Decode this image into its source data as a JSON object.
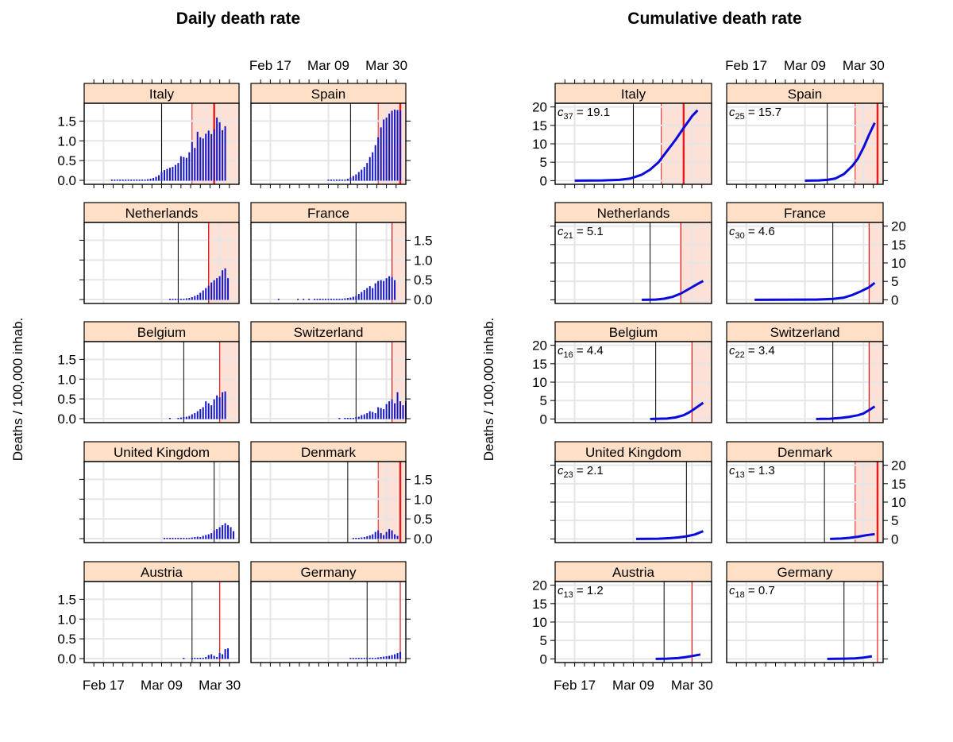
{
  "colors": {
    "strip_bg": "#ffe0c6",
    "shade": "#fde0d6",
    "grid": "#e6e6e6",
    "bar": "#1515c8",
    "curve": "#0a0adc",
    "redline": "#e51a1a",
    "event": "#000000"
  },
  "chart_data": [
    {
      "type": "bar",
      "title": "Daily death rate",
      "ylabel": "Deaths / 100,000 inhab.",
      "xlabel": "",
      "x_tick_labels": [
        "Feb 17",
        "Mar 09",
        "Mar 30"
      ],
      "x_tick_days": [
        0,
        21,
        42
      ],
      "xlim": [
        -7,
        49
      ],
      "ylim": [
        -0.1,
        1.95
      ],
      "y_ticks": [
        0.0,
        0.5,
        1.0,
        1.5
      ],
      "y_tick_labels": [
        "0.0",
        "0.5",
        "1.0",
        "1.5"
      ],
      "x_unit": "days since Feb 17",
      "series": [
        {
          "name": "Italy",
          "start_day": 3,
          "event_day": 21,
          "shade_start": 32,
          "shade_end": 49,
          "red_line": 40,
          "red_strong": true,
          "values": [
            0.002,
            0.002,
            0.003,
            0.004,
            0.005,
            0.006,
            0.008,
            0.01,
            0.012,
            0.015,
            0.02,
            0.025,
            0.03,
            0.04,
            0.05,
            0.07,
            0.1,
            0.14,
            0.22,
            0.27,
            0.3,
            0.33,
            0.35,
            0.4,
            0.45,
            0.62,
            0.6,
            0.58,
            0.72,
            0.98,
            0.83,
            1.24,
            1.1,
            1.07,
            1.19,
            1.27,
            1.18,
            1.3,
            1.6,
            1.48,
            1.28,
            1.38
          ]
        },
        {
          "name": "Spain",
          "start_day": 21,
          "event_day": 29,
          "shade_start": 39,
          "shade_end": 49,
          "red_line": 47,
          "red_strong": true,
          "values": [
            0.002,
            0.003,
            0.005,
            0.008,
            0.01,
            0.02,
            0.03,
            0.05,
            0.08,
            0.12,
            0.16,
            0.22,
            0.28,
            0.35,
            0.45,
            0.6,
            0.72,
            0.9,
            1.1,
            1.35,
            1.55,
            1.6,
            1.7,
            1.77,
            1.8,
            1.79,
            1.78
          ]
        },
        {
          "name": "Netherlands",
          "start_day": 24,
          "event_day": 27,
          "shade_start": 38,
          "shade_end": 49,
          "red_line": 38,
          "red_strong": false,
          "values": [
            0.005,
            0.005,
            0.004,
            0.01,
            0.02,
            0.03,
            0.04,
            0.05,
            0.07,
            0.1,
            0.13,
            0.18,
            0.24,
            0.3,
            0.36,
            0.44,
            0.5,
            0.55,
            0.6,
            0.75,
            0.8,
            0.55
          ]
        },
        {
          "name": "France",
          "start_day": 3,
          "event_day": 31,
          "shade_start": 44,
          "shade_end": 49,
          "red_line": 44,
          "red_strong": false,
          "values": [
            0.002,
            0,
            0,
            0,
            0,
            0,
            0,
            0.002,
            0,
            0.002,
            0,
            0.002,
            0,
            0.003,
            0.004,
            0.005,
            0.006,
            0.007,
            0.01,
            0.012,
            0.015,
            0.02,
            0.025,
            0.03,
            0.04,
            0.05,
            0.06,
            0.08,
            0.1,
            0.15,
            0.2,
            0.25,
            0.3,
            0.35,
            0.3,
            0.42,
            0.48,
            0.5,
            0.48,
            0.55,
            0.6,
            0.58,
            0.5
          ]
        },
        {
          "name": "Belgium",
          "start_day": 24,
          "event_day": 29,
          "shade_start": 42,
          "shade_end": 49,
          "red_line": 42,
          "red_strong": false,
          "values": [
            0.02,
            0,
            0,
            0.03,
            0.04,
            0.05,
            0.06,
            0.08,
            0.12,
            0.15,
            0.2,
            0.25,
            0.3,
            0.45,
            0.4,
            0.35,
            0.5,
            0.6,
            0.55,
            0.68,
            0.7
          ]
        },
        {
          "name": "Switzerland",
          "start_day": 25,
          "event_day": 31,
          "shade_start": 44,
          "shade_end": 49,
          "red_line": 44,
          "red_strong": false,
          "values": [
            0.01,
            0,
            0.02,
            0.01,
            0.02,
            0.03,
            0.05,
            0.06,
            0.1,
            0.12,
            0.15,
            0.2,
            0.18,
            0.15,
            0.3,
            0.28,
            0.25,
            0.38,
            0.45,
            0.5,
            0.4,
            0.68,
            0.45,
            0.35,
            0.45
          ]
        },
        {
          "name": "United Kingdom",
          "start_day": 22,
          "event_day": 40,
          "shade_start": null,
          "shade_end": null,
          "red_line": null,
          "red_strong": false,
          "values": [
            0.005,
            0.005,
            0.005,
            0.008,
            0.01,
            0.012,
            0.015,
            0.02,
            0.02,
            0.03,
            0.04,
            0.05,
            0.06,
            0.05,
            0.08,
            0.1,
            0.12,
            0.15,
            0.22,
            0.25,
            0.3,
            0.35,
            0.4,
            0.35,
            0.3,
            0.2
          ]
        },
        {
          "name": "Denmark",
          "start_day": 30,
          "event_day": 28,
          "shade_start": 39,
          "shade_end": 49,
          "red_line": 47,
          "red_strong": true,
          "values": [
            0.02,
            0.02,
            0.03,
            0.04,
            0.05,
            0.07,
            0.09,
            0.12,
            0.18,
            0.22,
            0.15,
            0.1,
            0.18,
            0.25,
            0.22,
            0.12,
            0.08
          ]
        },
        {
          "name": "Austria",
          "start_day": 29,
          "event_day": 32,
          "shade_start": null,
          "shade_end": null,
          "red_line": 42,
          "red_strong": false,
          "values": [
            0.01,
            0,
            0,
            0.01,
            0.01,
            0.02,
            0.03,
            0.02,
            0.05,
            0.1,
            0.12,
            0.08,
            0.05,
            0.15,
            0.12,
            0.25,
            0.27
          ]
        },
        {
          "name": "Germany",
          "start_day": 29,
          "event_day": 35,
          "shade_start": null,
          "shade_end": null,
          "red_line": 47,
          "red_strong": false,
          "values": [
            0.005,
            0.005,
            0.005,
            0.008,
            0.01,
            0.01,
            0.015,
            0.02,
            0.025,
            0.03,
            0.04,
            0.05,
            0.06,
            0.07,
            0.08,
            0.1,
            0.12,
            0.15,
            0.18
          ]
        }
      ]
    },
    {
      "type": "line",
      "title": "Cumulative death rate",
      "ylabel": "Deaths / 100,000 inhab.",
      "xlabel": "",
      "x_tick_labels": [
        "Feb 17",
        "Mar 09",
        "Mar 30"
      ],
      "x_tick_days": [
        0,
        21,
        42
      ],
      "xlim": [
        -7,
        49
      ],
      "ylim": [
        -1,
        21
      ],
      "y_ticks": [
        0,
        5,
        10,
        15,
        20
      ],
      "y_tick_labels": [
        "0",
        "5",
        "10",
        "15",
        "20"
      ],
      "x_unit": "days since Feb 17",
      "series": [
        {
          "name": "Italy",
          "ann_sub": "37",
          "ann_value": "19.1",
          "event_day": 21,
          "shade_start": 31,
          "shade_end": 49,
          "red_line": 39,
          "red_strong": true,
          "points": [
            [
              0,
              0
            ],
            [
              10,
              0.05
            ],
            [
              16,
              0.2
            ],
            [
              20,
              0.6
            ],
            [
              24,
              1.6
            ],
            [
              27,
              3
            ],
            [
              30,
              5
            ],
            [
              33,
              8
            ],
            [
              36,
              11
            ],
            [
              39,
              14.3
            ],
            [
              42,
              17.5
            ],
            [
              44,
              19.1
            ]
          ]
        },
        {
          "name": "Spain",
          "ann_sub": "25",
          "ann_value": "15.7",
          "event_day": 29,
          "shade_start": 39,
          "shade_end": 49,
          "red_line": 47,
          "red_strong": true,
          "points": [
            [
              21,
              0
            ],
            [
              26,
              0.05
            ],
            [
              29,
              0.2
            ],
            [
              32,
              0.6
            ],
            [
              35,
              1.8
            ],
            [
              38,
              4
            ],
            [
              40,
              6
            ],
            [
              42,
              9
            ],
            [
              44,
              12.5
            ],
            [
              46,
              15.7
            ]
          ]
        },
        {
          "name": "Netherlands",
          "ann_sub": "21",
          "ann_value": "5.1",
          "event_day": 27,
          "shade_start": 38,
          "shade_end": 49,
          "red_line": 38,
          "red_strong": false,
          "points": [
            [
              24,
              0
            ],
            [
              29,
              0.05
            ],
            [
              32,
              0.3
            ],
            [
              35,
              0.8
            ],
            [
              38,
              1.7
            ],
            [
              41,
              3
            ],
            [
              44,
              4.3
            ],
            [
              46,
              5.1
            ]
          ]
        },
        {
          "name": "France",
          "ann_sub": "30",
          "ann_value": "4.6",
          "event_day": 31,
          "shade_start": 44,
          "shade_end": 49,
          "red_line": 44,
          "red_strong": false,
          "points": [
            [
              3,
              0
            ],
            [
              25,
              0.05
            ],
            [
              31,
              0.25
            ],
            [
              35,
              0.6
            ],
            [
              38,
              1.3
            ],
            [
              41,
              2.3
            ],
            [
              44,
              3.4
            ],
            [
              46,
              4.6
            ]
          ]
        },
        {
          "name": "Belgium",
          "ann_sub": "16",
          "ann_value": "4.4",
          "event_day": 29,
          "shade_start": 42,
          "shade_end": 49,
          "red_line": 42,
          "red_strong": false,
          "points": [
            [
              27,
              0
            ],
            [
              33,
              0.1
            ],
            [
              36,
              0.4
            ],
            [
              39,
              1
            ],
            [
              41,
              1.8
            ],
            [
              43,
              2.8
            ],
            [
              46,
              4.4
            ]
          ]
        },
        {
          "name": "Switzerland",
          "ann_sub": "22",
          "ann_value": "3.4",
          "event_day": 31,
          "shade_start": 44,
          "shade_end": 49,
          "red_line": 44,
          "red_strong": false,
          "points": [
            [
              25,
              0
            ],
            [
              30,
              0.05
            ],
            [
              34,
              0.3
            ],
            [
              37,
              0.6
            ],
            [
              40,
              1
            ],
            [
              42,
              1.5
            ],
            [
              44,
              2.4
            ],
            [
              46,
              3.4
            ]
          ]
        },
        {
          "name": "United Kingdom",
          "ann_sub": "23",
          "ann_value": "2.1",
          "event_day": 40,
          "shade_start": null,
          "shade_end": null,
          "red_line": null,
          "red_strong": false,
          "points": [
            [
              22,
              0
            ],
            [
              30,
              0.05
            ],
            [
              34,
              0.2
            ],
            [
              37,
              0.4
            ],
            [
              40,
              0.7
            ],
            [
              43,
              1.2
            ],
            [
              46,
              2.1
            ]
          ]
        },
        {
          "name": "Denmark",
          "ann_sub": "13",
          "ann_value": "1.3",
          "event_day": 28,
          "shade_start": 39,
          "shade_end": 49,
          "red_line": 47,
          "red_strong": true,
          "points": [
            [
              30,
              0
            ],
            [
              34,
              0.1
            ],
            [
              37,
              0.3
            ],
            [
              40,
              0.6
            ],
            [
              43,
              1
            ],
            [
              46,
              1.3
            ]
          ]
        },
        {
          "name": "Austria",
          "ann_sub": "13",
          "ann_value": "1.2",
          "event_day": 32,
          "shade_start": null,
          "shade_end": null,
          "red_line": 42,
          "red_strong": false,
          "points": [
            [
              29,
              0
            ],
            [
              33,
              0.05
            ],
            [
              37,
              0.2
            ],
            [
              40,
              0.5
            ],
            [
              43,
              0.9
            ],
            [
              45,
              1.2
            ]
          ]
        },
        {
          "name": "Germany",
          "ann_sub": "18",
          "ann_value": "0.7",
          "event_day": 35,
          "shade_start": null,
          "shade_end": null,
          "red_line": 47,
          "red_strong": false,
          "points": [
            [
              29,
              0
            ],
            [
              35,
              0.05
            ],
            [
              39,
              0.15
            ],
            [
              42,
              0.35
            ],
            [
              45,
              0.7
            ]
          ]
        }
      ]
    }
  ]
}
